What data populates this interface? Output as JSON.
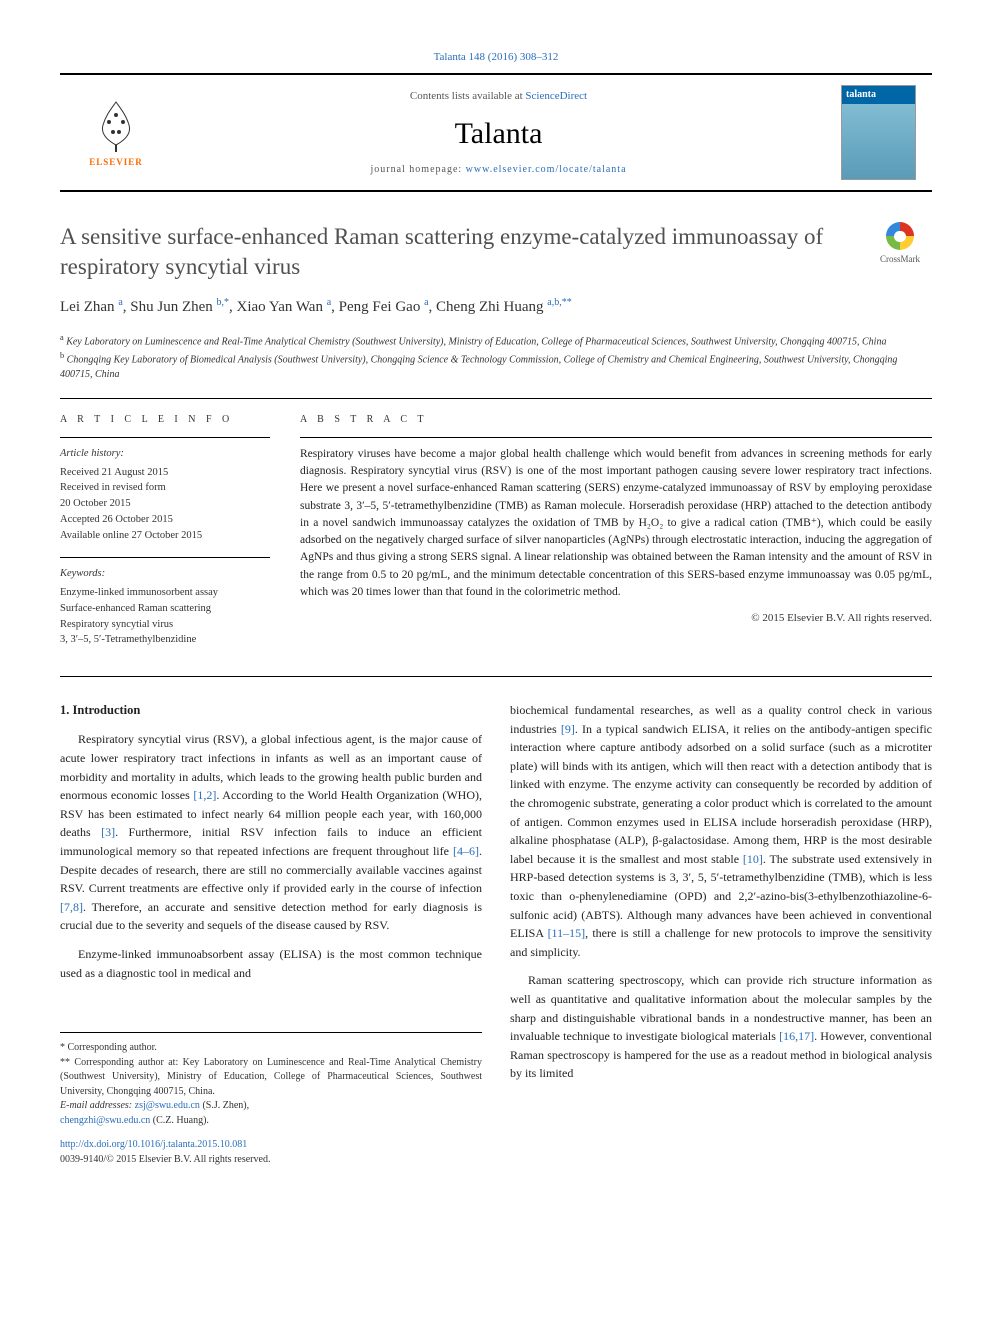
{
  "header": {
    "citation_link": "Talanta 148 (2016) 308–312",
    "contents_prefix": "Contents lists available at ",
    "contents_link": "ScienceDirect",
    "journal_name": "Talanta",
    "homepage_prefix": "journal homepage: ",
    "homepage_url": "www.elsevier.com/locate/talanta",
    "publisher": "ELSEVIER",
    "cover_label": "talanta"
  },
  "crossmark_label": "CrossMark",
  "title": "A sensitive surface-enhanced Raman scattering enzyme-catalyzed immunoassay of respiratory syncytial virus",
  "authors_html": "Lei Zhan <sup>a</sup>, Shu Jun Zhen <sup>b,*</sup>, Xiao Yan Wan <sup>a</sup>, Peng Fei Gao <sup>a</sup>, Cheng Zhi Huang <sup>a,b,**</sup>",
  "affiliations": {
    "a": "Key Laboratory on Luminescence and Real-Time Analytical Chemistry (Southwest University), Ministry of Education, College of Pharmaceutical Sciences, Southwest University, Chongqing 400715, China",
    "b": "Chongqing Key Laboratory of Biomedical Analysis (Southwest University), Chongqing Science & Technology Commission, College of Chemistry and Chemical Engineering, Southwest University, Chongqing 400715, China"
  },
  "article_info": {
    "heading": "A R T I C L E  I N F O",
    "history_label": "Article history:",
    "history": [
      "Received 21 August 2015",
      "Received in revised form",
      "20 October 2015",
      "Accepted 26 October 2015",
      "Available online 27 October 2015"
    ],
    "keywords_label": "Keywords:",
    "keywords": [
      "Enzyme-linked immunosorbent assay",
      "Surface-enhanced Raman scattering",
      "Respiratory syncytial virus",
      "3, 3′–5, 5′-Tetramethylbenzidine"
    ]
  },
  "abstract": {
    "heading": "A B S T R A C T",
    "text": "Respiratory viruses have become a major global health challenge which would benefit from advances in screening methods for early diagnosis. Respiratory syncytial virus (RSV) is one of the most important pathogen causing severe lower respiratory tract infections. Here we present a novel surface-enhanced Raman scattering (SERS) enzyme-catalyzed immunoassay of RSV by employing peroxidase substrate 3, 3′–5, 5′-tetramethylbenzidine (TMB) as Raman molecule. Horseradish peroxidase (HRP) attached to the detection antibody in a novel sandwich immunoassay catalyzes the oxidation of TMB by H₂O₂ to give a radical cation (TMB⁺), which could be easily adsorbed on the negatively charged surface of silver nanoparticles (AgNPs) through electrostatic interaction, inducing the aggregation of AgNPs and thus giving a strong SERS signal. A linear relationship was obtained between the Raman intensity and the amount of RSV in the range from 0.5 to 20 pg/mL, and the minimum detectable concentration of this SERS-based enzyme immunoassay was 0.05 pg/mL, which was 20 times lower than that found in the colorimetric method.",
    "copyright": "© 2015 Elsevier B.V. All rights reserved."
  },
  "body": {
    "section1_heading": "1.  Introduction",
    "col1_p1": "Respiratory syncytial virus (RSV), a global infectious agent, is the major cause of acute lower respiratory tract infections in infants as well as an important cause of morbidity and mortality in adults, which leads to the growing health public burden and enormous economic losses [1,2]. According to the World Health Organization (WHO), RSV has been estimated to infect nearly 64 million people each year, with 160,000 deaths [3]. Furthermore, initial RSV infection fails to induce an efficient immunological memory so that repeated infections are frequent throughout life [4–6]. Despite decades of research, there are still no commercially available vaccines against RSV. Current treatments are effective only if provided early in the course of infection [7,8]. Therefore, an accurate and sensitive detection method for early diagnosis is crucial due to the severity and sequels of the disease caused by RSV.",
    "col1_p2": "Enzyme-linked immunoabsorbent assay (ELISA) is the most common technique used as a diagnostic tool in medical and",
    "col2_p1": "biochemical fundamental researches, as well as a quality control check in various industries [9]. In a typical sandwich ELISA, it relies on the antibody-antigen specific interaction where capture antibody adsorbed on a solid surface (such as a microtiter plate) will binds with its antigen, which will then react with a detection antibody that is linked with enzyme. The enzyme activity can consequently be recorded by addition of the chromogenic substrate, generating a color product which is correlated to the amount of antigen. Common enzymes used in ELISA include horseradish peroxidase (HRP), alkaline phosphatase (ALP), β-galactosidase. Among them, HRP is the most desirable label because it is the smallest and most stable [10]. The substrate used extensively in HRP-based detection systems is 3, 3′, 5, 5′-tetramethylbenzidine (TMB), which is less toxic than o-phenylenediamine (OPD) and 2,2′-azino-bis(3-ethylbenzothiazoline-6-sulfonic acid) (ABTS). Although many advances have been achieved in conventional ELISA [11–15], there is still a challenge for new protocols to improve the sensitivity and simplicity.",
    "col2_p2": "Raman scattering spectroscopy, which can provide rich structure information as well as quantitative and qualitative information about the molecular samples by the sharp and distinguishable vibrational bands in a nondestructive manner, has been an invaluable technique to investigate biological materials [16,17]. However, conventional Raman spectroscopy is hampered for the use as a readout method in biological analysis by its limited"
  },
  "footnotes": {
    "corr1": "* Corresponding author.",
    "corr2": "** Corresponding author at: Key Laboratory on Luminescence and Real-Time Analytical Chemistry (Southwest University), Ministry of Education, College of Pharmaceutical Sciences, Southwest University, Chongqing 400715, China.",
    "email_label": "E-mail addresses: ",
    "email1": "zsj@swu.edu.cn",
    "email1_name": " (S.J. Zhen),",
    "email2": "chengzhi@swu.edu.cn",
    "email2_name": " (C.Z. Huang).",
    "doi": "http://dx.doi.org/10.1016/j.talanta.2015.10.081",
    "issn": "0039-9140/© 2015 Elsevier B.V. All rights reserved."
  },
  "refs": {
    "r12": "[1,2]",
    "r3": "[3]",
    "r46": "[4–6]",
    "r78": "[7,8]",
    "r9": "[9]",
    "r10": "[10]",
    "r1115": "[11–15]",
    "r1617": "[16,17]"
  },
  "colors": {
    "link": "#2a6ebb",
    "elsevier_orange": "#ff6b00",
    "text": "#222222",
    "title_gray": "#505050"
  }
}
